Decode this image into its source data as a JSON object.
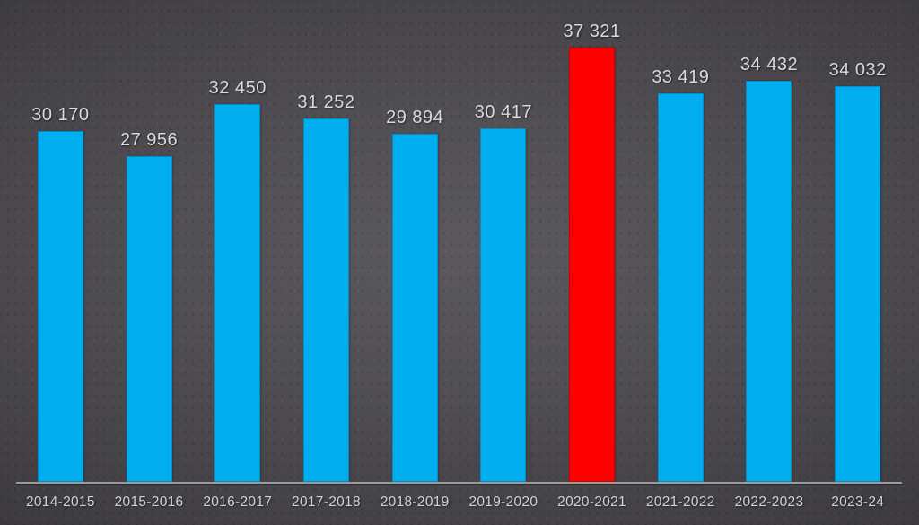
{
  "chart_data": {
    "type": "bar",
    "title": "",
    "xlabel": "",
    "ylabel": "",
    "categories": [
      "2014-2015",
      "2015-2016",
      "2016-2017",
      "2017-2018",
      "2018-2019",
      "2019-2020",
      "2020-2021",
      "2021-2022",
      "2022-2023",
      "2023-24"
    ],
    "values": [
      30170,
      27956,
      32450,
      31252,
      29894,
      30417,
      37321,
      33419,
      34432,
      34032
    ],
    "value_labels": [
      "30 170",
      "27 956",
      "32 450",
      "31 252",
      "29 894",
      "30 417",
      "37 321",
      "33 419",
      "34 432",
      "34 032"
    ],
    "highlight_index": 6,
    "ylim": [
      0,
      37321
    ],
    "grid": false,
    "legend": false,
    "colors": {
      "bar": "#00AEEF",
      "highlight_bar": "#FE0000",
      "axis_line": "#9B9B9B",
      "value_label_text": "#D9D9D9",
      "category_label_text": "#D2D2D2",
      "background_center": "#5B595E",
      "background_edge": "#1F1E21"
    }
  }
}
